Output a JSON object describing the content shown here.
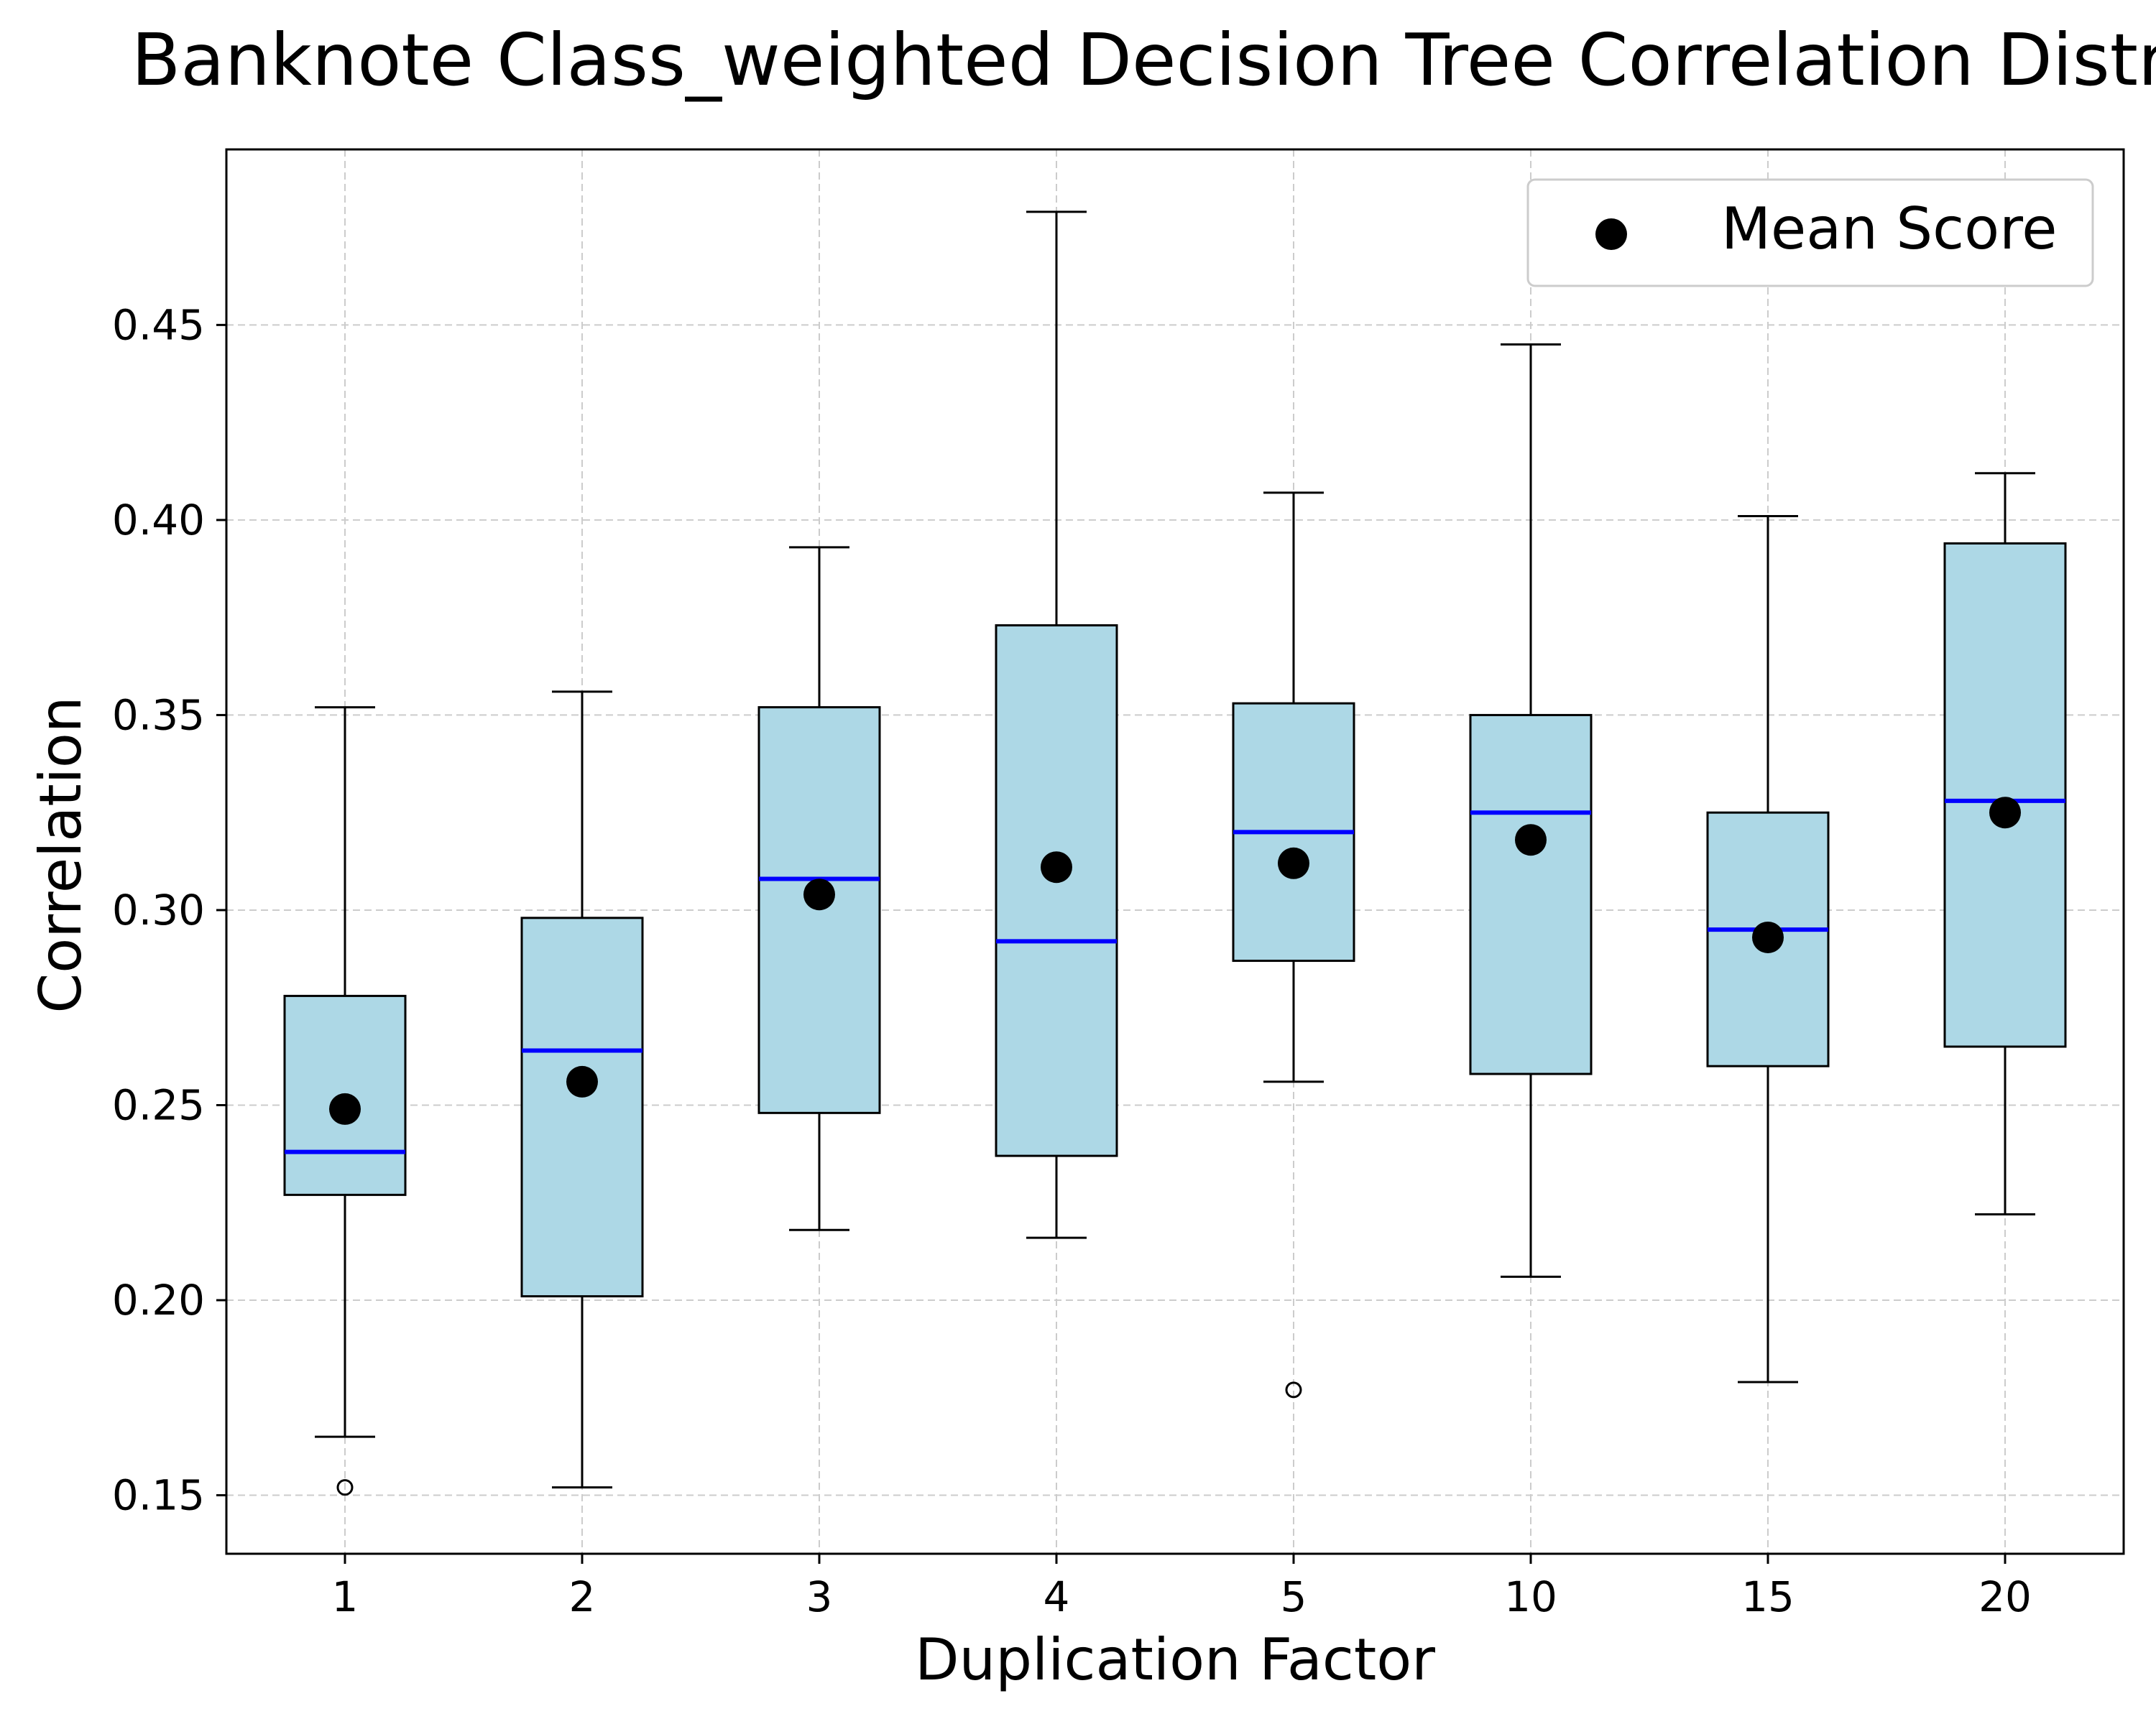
{
  "chart_data": {
    "type": "box",
    "title": "Banknote Class_weighted Decision Tree Correlation Distrib",
    "xlabel": "Duplication Factor",
    "ylabel": "Correlation",
    "categories": [
      "1",
      "2",
      "3",
      "4",
      "5",
      "10",
      "15",
      "20"
    ],
    "ylim": [
      0.135,
      0.495
    ],
    "yticks": [
      0.15,
      0.2,
      0.25,
      0.3,
      0.35,
      0.4,
      0.45
    ],
    "ytick_labels": [
      "0.15",
      "0.20",
      "0.25",
      "0.30",
      "0.35",
      "0.40",
      "0.45"
    ],
    "grid": true,
    "legend": {
      "position": "top-right",
      "entries": [
        {
          "label": "Mean Score",
          "marker": "circle",
          "color": "#000000"
        }
      ]
    },
    "colors": {
      "box_fill": "#add8e6",
      "median": "#0000ff",
      "edge": "#000000",
      "mean": "#000000"
    },
    "boxes": [
      {
        "category": "1",
        "whisker_low": 0.165,
        "q1": 0.227,
        "median": 0.238,
        "q3": 0.278,
        "whisker_high": 0.352,
        "mean": 0.249,
        "outliers": [
          0.152
        ]
      },
      {
        "category": "2",
        "whisker_low": 0.152,
        "q1": 0.201,
        "median": 0.264,
        "q3": 0.298,
        "whisker_high": 0.356,
        "mean": 0.256,
        "outliers": []
      },
      {
        "category": "3",
        "whisker_low": 0.218,
        "q1": 0.248,
        "median": 0.308,
        "q3": 0.352,
        "whisker_high": 0.393,
        "mean": 0.304,
        "outliers": []
      },
      {
        "category": "4",
        "whisker_low": 0.216,
        "q1": 0.237,
        "median": 0.292,
        "q3": 0.373,
        "whisker_high": 0.479,
        "mean": 0.311,
        "outliers": []
      },
      {
        "category": "5",
        "whisker_low": 0.256,
        "q1": 0.287,
        "median": 0.32,
        "q3": 0.353,
        "whisker_high": 0.407,
        "mean": 0.312,
        "outliers": [
          0.177
        ]
      },
      {
        "category": "10",
        "whisker_low": 0.206,
        "q1": 0.258,
        "median": 0.325,
        "q3": 0.35,
        "whisker_high": 0.445,
        "mean": 0.318,
        "outliers": []
      },
      {
        "category": "15",
        "whisker_low": 0.179,
        "q1": 0.26,
        "median": 0.295,
        "q3": 0.325,
        "whisker_high": 0.401,
        "mean": 0.293,
        "outliers": []
      },
      {
        "category": "20",
        "whisker_low": 0.222,
        "q1": 0.265,
        "median": 0.328,
        "q3": 0.394,
        "whisker_high": 0.412,
        "mean": 0.325,
        "outliers": []
      }
    ]
  }
}
